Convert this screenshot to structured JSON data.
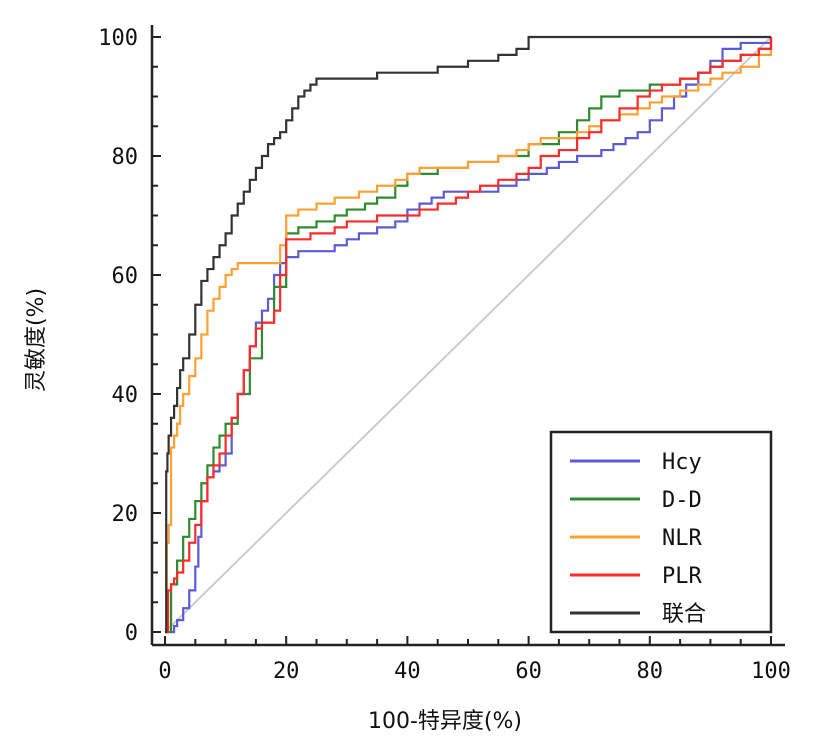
{
  "chart_data": {
    "type": "line",
    "title": "",
    "xlabel": "100-特异度(%)",
    "ylabel": "灵敏度(%)",
    "xlim": [
      0,
      100
    ],
    "ylim": [
      0,
      100
    ],
    "x_ticks": [
      "0",
      "20",
      "40",
      "60",
      "80",
      "100"
    ],
    "y_ticks": [
      "0",
      "20",
      "40",
      "60",
      "80",
      "100"
    ],
    "grid": false,
    "legend_position": "bottom-right",
    "reference_line": {
      "x": [
        0,
        100
      ],
      "y": [
        0,
        100
      ],
      "color": "#cccccc"
    },
    "series": [
      {
        "name": "Hcy",
        "color": "#5b5bd6",
        "x": [
          0,
          1,
          1.5,
          2,
          3,
          4,
          5,
          5.5,
          6,
          7,
          8,
          9,
          10,
          11,
          12,
          13,
          14,
          15,
          16,
          17,
          18,
          19,
          20,
          22,
          25,
          28,
          30,
          32,
          35,
          38,
          40,
          42,
          44,
          46,
          48,
          50,
          55,
          58,
          60,
          63,
          65,
          68,
          70,
          72,
          74,
          76,
          78,
          80,
          82,
          84,
          86,
          88,
          90,
          92,
          95,
          100
        ],
        "y": [
          0,
          0,
          1,
          2,
          4,
          7,
          11,
          16,
          22,
          26,
          27,
          28,
          30,
          36,
          40,
          44,
          48,
          52,
          54,
          56,
          60,
          62,
          63,
          64,
          64,
          65,
          66,
          67,
          68,
          69,
          71,
          72,
          73,
          74,
          74,
          74,
          75,
          76,
          77,
          78,
          79,
          80,
          80,
          81,
          82,
          83,
          84,
          86,
          88,
          90,
          92,
          94,
          96,
          98,
          99,
          100
        ]
      },
      {
        "name": "D-D",
        "color": "#2e8b2e",
        "x": [
          0,
          1,
          2,
          3,
          4,
          5,
          6,
          7,
          8,
          9,
          10,
          12,
          14,
          16,
          18,
          20,
          22,
          25,
          28,
          30,
          33,
          35,
          38,
          40,
          45,
          50,
          55,
          60,
          65,
          68,
          70,
          72,
          75,
          78,
          80,
          82,
          85,
          88,
          90,
          92,
          95,
          98,
          100
        ],
        "y": [
          0,
          8,
          12,
          16,
          19,
          22,
          25,
          28,
          31,
          33,
          35,
          40,
          46,
          52,
          58,
          67,
          68,
          69,
          70,
          71,
          72,
          73,
          75,
          77,
          78,
          79,
          80,
          82,
          84,
          86,
          88,
          90,
          91,
          91,
          92,
          92,
          93,
          94,
          95,
          96,
          97,
          98,
          100
        ]
      },
      {
        "name": "NLR",
        "color": "#ffa033",
        "x": [
          0,
          0.3,
          0.6,
          1,
          1.5,
          2,
          2.5,
          3,
          4,
          5,
          6,
          7,
          8,
          9,
          10,
          11,
          12,
          13,
          14,
          15,
          16,
          17,
          18,
          19,
          20,
          22,
          25,
          28,
          30,
          32,
          35,
          38,
          40,
          42,
          45,
          48,
          50,
          55,
          58,
          60,
          62,
          65,
          68,
          70,
          72,
          75,
          78,
          80,
          82,
          85,
          88,
          90,
          92,
          95,
          98,
          100
        ],
        "y": [
          0,
          15,
          18,
          31,
          33,
          35,
          38,
          40,
          43,
          46,
          50,
          54,
          56,
          58,
          60,
          61,
          62,
          62,
          62,
          62,
          62,
          62,
          62,
          65,
          70,
          71,
          72,
          73,
          73,
          74,
          75,
          76,
          77,
          78,
          78,
          78,
          79,
          80,
          81,
          82,
          83,
          83,
          84,
          85,
          86,
          87,
          88,
          89,
          90,
          91,
          92,
          93,
          94,
          95,
          97,
          100
        ]
      },
      {
        "name": "PLR",
        "color": "#ff2a2a",
        "x": [
          0,
          0.5,
          1,
          1.5,
          2,
          3,
          4,
          5,
          6,
          7,
          8,
          9,
          10,
          11,
          12,
          13,
          14,
          15,
          16,
          17,
          18,
          19,
          20,
          22,
          24,
          26,
          28,
          30,
          32,
          35,
          38,
          40,
          42,
          45,
          48,
          50,
          52,
          55,
          58,
          60,
          62,
          65,
          68,
          70,
          72,
          75,
          78,
          80,
          82,
          85,
          88,
          90,
          92,
          95,
          98,
          100
        ],
        "y": [
          0,
          7,
          8,
          9,
          10,
          12,
          15,
          18,
          22,
          26,
          28,
          30,
          33,
          36,
          40,
          44,
          48,
          51,
          52,
          52,
          54,
          60,
          66,
          66,
          67,
          67,
          68,
          69,
          69,
          70,
          70,
          70,
          71,
          72,
          73,
          74,
          75,
          76,
          77,
          78,
          80,
          81,
          83,
          84,
          86,
          88,
          90,
          91,
          92,
          93,
          94,
          95,
          96,
          97,
          98,
          100
        ]
      },
      {
        "name": "联合",
        "color": "#333333",
        "x": [
          0,
          0.2,
          0.4,
          0.6,
          1,
          1.5,
          2,
          2.5,
          3,
          4,
          5,
          6,
          7,
          8,
          9,
          10,
          11,
          12,
          13,
          14,
          15,
          16,
          17,
          18,
          19,
          20,
          21,
          22,
          23,
          24,
          25,
          28,
          30,
          35,
          38,
          40,
          45,
          48,
          50,
          55,
          58,
          60,
          65,
          70,
          80,
          90,
          100
        ],
        "y": [
          0,
          27,
          30,
          33,
          36,
          38,
          41,
          44,
          46,
          50,
          55,
          59,
          61,
          63,
          65,
          67,
          70,
          72,
          74,
          76,
          78,
          80,
          82,
          83,
          84,
          86,
          88,
          90,
          91,
          92,
          93,
          93,
          93,
          94,
          94,
          94,
          95,
          95,
          96,
          97,
          98,
          100,
          100,
          100,
          100,
          100,
          100
        ]
      }
    ]
  }
}
